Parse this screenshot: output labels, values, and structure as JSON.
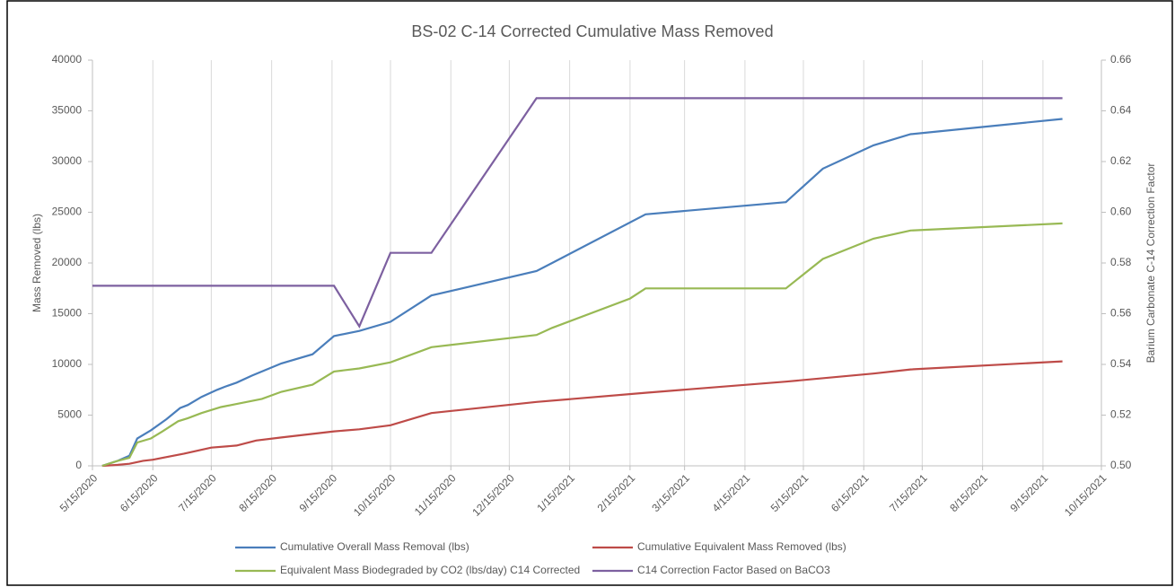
{
  "chart_data": {
    "type": "line",
    "title": "BS-02 C-14 Corrected Cumulative Mass Removed",
    "ylabel": "Mass Removed (lbs)",
    "y2label": "Barium Carbonate C-14 Correction Factor",
    "xlim": [
      "2020-05-15",
      "2021-10-15"
    ],
    "xticks": [
      {
        "value": "2020-05-15",
        "label": "5/15/2020"
      },
      {
        "value": "2020-06-15",
        "label": "6/15/2020"
      },
      {
        "value": "2020-07-15",
        "label": "7/15/2020"
      },
      {
        "value": "2020-08-15",
        "label": "8/15/2020"
      },
      {
        "value": "2020-09-15",
        "label": "9/15/2020"
      },
      {
        "value": "2020-10-15",
        "label": "10/15/2020"
      },
      {
        "value": "2020-11-15",
        "label": "11/15/2020"
      },
      {
        "value": "2020-12-15",
        "label": "12/15/2020"
      },
      {
        "value": "2021-01-15",
        "label": "1/15/2021"
      },
      {
        "value": "2021-02-15",
        "label": "2/15/2021"
      },
      {
        "value": "2021-03-15",
        "label": "3/15/2021"
      },
      {
        "value": "2021-04-15",
        "label": "4/15/2021"
      },
      {
        "value": "2021-05-15",
        "label": "5/15/2021"
      },
      {
        "value": "2021-06-15",
        "label": "6/15/2021"
      },
      {
        "value": "2021-07-15",
        "label": "7/15/2021"
      },
      {
        "value": "2021-08-15",
        "label": "8/15/2021"
      },
      {
        "value": "2021-09-15",
        "label": "9/15/2021"
      },
      {
        "value": "2021-10-15",
        "label": "10/15/2021"
      }
    ],
    "ylim": [
      0,
      40000
    ],
    "yticks": [
      0,
      5000,
      10000,
      15000,
      20000,
      25000,
      30000,
      35000,
      40000
    ],
    "y2lim": [
      0.5,
      0.66
    ],
    "y2ticks": [
      {
        "value": 0.5,
        "label": "0.50"
      },
      0.52,
      0.54,
      0.56,
      0.58,
      {
        "value": 0.6,
        "label": "0.60"
      },
      0.62,
      0.64,
      0.66
    ],
    "grid": "x",
    "legend": "bottom",
    "series": [
      {
        "name": "Cumulative Overall Mass Removal (lbs)",
        "color": "#4a7ebb",
        "x": [
          "2020-05-20",
          "2020-05-28",
          "2020-06-03",
          "2020-06-07",
          "2020-06-14",
          "2020-06-22",
          "2020-06-29",
          "2020-07-03",
          "2020-07-10",
          "2020-07-18",
          "2020-07-22",
          "2020-07-28",
          "2020-08-05",
          "2020-08-20",
          "2020-09-05",
          "2020-09-16",
          "2020-09-29",
          "2020-10-15",
          "2020-11-05",
          "2020-12-29",
          "2021-01-06",
          "2021-02-23",
          "2021-05-06",
          "2021-05-25",
          "2021-06-20",
          "2021-07-09",
          "2021-09-25"
        ],
        "values": [
          0,
          500,
          1000,
          2700,
          3500,
          4600,
          5700,
          6000,
          6800,
          7500,
          7800,
          8200,
          8900,
          10100,
          11000,
          12800,
          13300,
          14200,
          16800,
          19200,
          20000,
          24800,
          26000,
          29300,
          31600,
          32700,
          34200
        ]
      },
      {
        "name": "Cumulative Equivalent Mass Removed (lbs)",
        "color": "#be4b48",
        "x": [
          "2020-05-20",
          "2020-05-28",
          "2020-06-03",
          "2020-06-10",
          "2020-06-15",
          "2020-07-01",
          "2020-07-15",
          "2020-07-28",
          "2020-08-07",
          "2020-08-20",
          "2020-09-16",
          "2020-09-29",
          "2020-10-15",
          "2020-11-05",
          "2020-12-29",
          "2021-02-23",
          "2021-05-06",
          "2021-06-20",
          "2021-07-09",
          "2021-09-25"
        ],
        "values": [
          0,
          100,
          200,
          500,
          600,
          1200,
          1800,
          2000,
          2500,
          2800,
          3400,
          3600,
          4000,
          5200,
          6300,
          7200,
          8300,
          9100,
          9500,
          10300
        ]
      },
      {
        "name": "Equivalent Mass Biodegraded by CO2 (lbs/day) C14 Corrected",
        "color": "#98b954",
        "x": [
          "2020-05-20",
          "2020-05-28",
          "2020-06-03",
          "2020-06-07",
          "2020-06-14",
          "2020-06-20",
          "2020-06-28",
          "2020-07-03",
          "2020-07-10",
          "2020-07-20",
          "2020-07-28",
          "2020-08-10",
          "2020-08-20",
          "2020-09-05",
          "2020-09-16",
          "2020-09-29",
          "2020-10-15",
          "2020-11-05",
          "2020-12-29",
          "2021-01-06",
          "2021-02-15",
          "2021-02-23",
          "2021-05-06",
          "2021-05-25",
          "2021-06-20",
          "2021-07-09",
          "2021-09-25"
        ],
        "values": [
          0,
          500,
          800,
          2300,
          2700,
          3400,
          4400,
          4700,
          5200,
          5800,
          6100,
          6600,
          7300,
          8000,
          9300,
          9600,
          10200,
          11700,
          12900,
          13600,
          16500,
          17500,
          17500,
          20400,
          22400,
          23200,
          23900
        ]
      },
      {
        "name": "C14 Correction Factor  Based on BaCO3",
        "color": "#7d60a0",
        "axis": "y2",
        "x": [
          "2020-05-15",
          "2020-09-16",
          "2020-09-29",
          "2020-10-15",
          "2020-11-05",
          "2020-12-29",
          "2021-09-25"
        ],
        "values": [
          0.571,
          0.571,
          0.555,
          0.584,
          0.584,
          0.645,
          0.645
        ]
      }
    ]
  }
}
